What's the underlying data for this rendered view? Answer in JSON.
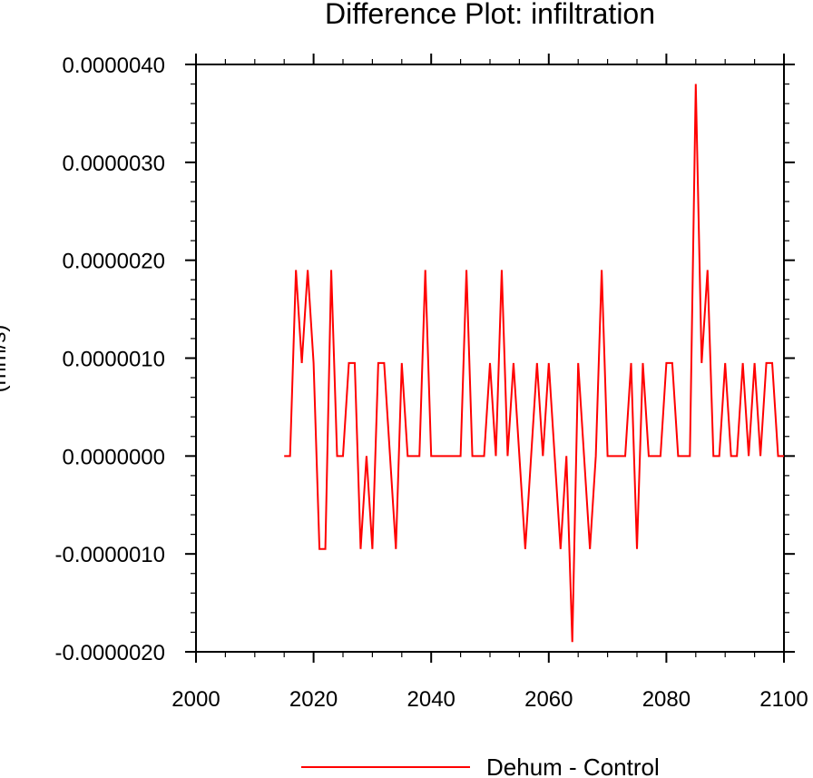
{
  "chart_data": {
    "type": "line",
    "title": "Difference Plot: infiltration",
    "xlabel": "",
    "ylabel": "(mm/s)",
    "xlim": [
      2000,
      2100
    ],
    "ylim": [
      -2e-06,
      4e-06
    ],
    "x_ticks": [
      2000,
      2020,
      2040,
      2060,
      2080,
      2100
    ],
    "x_tick_labels": [
      "2000",
      "2020",
      "2040",
      "2060",
      "2080",
      "2100"
    ],
    "y_ticks": [
      -2e-06,
      -1e-06,
      0,
      1e-06,
      2e-06,
      3e-06,
      4e-06
    ],
    "y_tick_labels": [
      "-0.0000020",
      "-0.0000010",
      "0.0000000",
      "0.0000010",
      "0.0000020",
      "0.0000030",
      "0.0000040"
    ],
    "legend": {
      "placement": "bottom-center",
      "entries": [
        "Dehum - Control"
      ]
    },
    "series": [
      {
        "name": "Dehum - Control",
        "color": "#ff0000",
        "x": [
          2015,
          2016,
          2017,
          2018,
          2019,
          2020,
          2021,
          2022,
          2023,
          2024,
          2025,
          2026,
          2027,
          2028,
          2029,
          2030,
          2031,
          2032,
          2033,
          2034,
          2035,
          2036,
          2037,
          2038,
          2039,
          2040,
          2041,
          2042,
          2043,
          2044,
          2045,
          2046,
          2047,
          2048,
          2049,
          2050,
          2051,
          2052,
          2053,
          2054,
          2055,
          2056,
          2057,
          2058,
          2059,
          2060,
          2061,
          2062,
          2063,
          2064,
          2065,
          2066,
          2067,
          2068,
          2069,
          2070,
          2071,
          2072,
          2073,
          2074,
          2075,
          2076,
          2077,
          2078,
          2079,
          2080,
          2081,
          2082,
          2083,
          2084,
          2085,
          2086,
          2087,
          2088,
          2089,
          2090,
          2091,
          2092,
          2093,
          2094,
          2095,
          2096,
          2097,
          2098,
          2099,
          2100
        ],
        "values": [
          0,
          0,
          1.9e-06,
          9.5e-07,
          1.9e-06,
          9.5e-07,
          -9.5e-07,
          -9.5e-07,
          1.9e-06,
          0,
          0,
          9.5e-07,
          9.5e-07,
          -9.5e-07,
          0,
          -9.5e-07,
          9.5e-07,
          9.5e-07,
          0,
          -9.5e-07,
          9.5e-07,
          0,
          0,
          0,
          1.9e-06,
          0,
          0,
          0,
          0,
          0,
          0,
          1.9e-06,
          0,
          0,
          0,
          9.5e-07,
          0,
          1.9e-06,
          0,
          9.5e-07,
          0,
          -9.5e-07,
          0,
          9.5e-07,
          0,
          9.5e-07,
          0,
          -9.5e-07,
          0,
          -1.9e-06,
          9.5e-07,
          0,
          -9.5e-07,
          0,
          1.9e-06,
          0,
          0,
          0,
          0,
          9.5e-07,
          -9.5e-07,
          9.5e-07,
          0,
          0,
          0,
          9.5e-07,
          9.5e-07,
          0,
          0,
          0,
          3.8e-06,
          9.5e-07,
          1.9e-06,
          0,
          0,
          9.5e-07,
          0,
          0,
          9.5e-07,
          0,
          9.5e-07,
          0,
          9.5e-07,
          9.5e-07,
          0,
          0
        ]
      }
    ]
  }
}
